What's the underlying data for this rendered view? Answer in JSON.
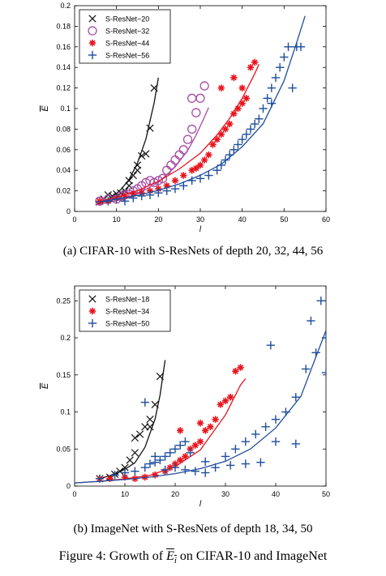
{
  "figure_caption": {
    "prefix": "Figure 4: Growth of ",
    "symbol": "E",
    "subscript": "i",
    "suffix": " on CIFAR-10 and ImageNet"
  },
  "colors": {
    "S-ResNet-20": "#111111",
    "S-ResNet-32": "#a64ca6",
    "S-ResNet-44": "#e8141e",
    "S-ResNet-56": "#1f4e9c",
    "S-ResNet-18": "#111111",
    "S-ResNet-34": "#e8141e",
    "S-ResNet-50": "#1f4e9c"
  },
  "chart_data": [
    {
      "type": "scatter",
      "caption": "(a) CIFAR-10 with S-ResNets of depth 20, 32, 44, 56",
      "xlabel": "l",
      "ylabel": "E",
      "xlim": [
        0,
        60
      ],
      "ylim": [
        0,
        0.2
      ],
      "xticks": [
        "0",
        "10",
        "20",
        "30",
        "40",
        "50",
        "60"
      ],
      "yticks": [
        "0",
        "0.02",
        "0.04",
        "0.06",
        "0.08",
        "0.1",
        "0.12",
        "0.14",
        "0.16",
        "0.18",
        "0.2"
      ],
      "grid": false,
      "legend_position": "top-left",
      "series": [
        {
          "name": "S-ResNet−20",
          "marker": "x",
          "points": [
            [
              6,
              0.01
            ],
            [
              7,
              0.012
            ],
            [
              8,
              0.016
            ],
            [
              9,
              0.015
            ],
            [
              10,
              0.017
            ],
            [
              11,
              0.018
            ],
            [
              11,
              0.014
            ],
            [
              12,
              0.02
            ],
            [
              13,
              0.025
            ],
            [
              13,
              0.03
            ],
            [
              14,
              0.035
            ],
            [
              15,
              0.04
            ],
            [
              15,
              0.045
            ],
            [
              16,
              0.054
            ],
            [
              17,
              0.056
            ],
            [
              18,
              0.081
            ],
            [
              19,
              0.12
            ]
          ],
          "curve": [
            [
              5,
              0.0063
            ],
            [
              7,
              0.0094
            ],
            [
              9,
              0.014
            ],
            [
              11,
              0.021
            ],
            [
              13,
              0.031
            ],
            [
              15,
              0.047
            ],
            [
              17,
              0.07
            ],
            [
              19,
              0.106
            ],
            [
              20,
              0.13
            ]
          ]
        },
        {
          "name": "S-ResNet−32",
          "marker": "o",
          "points": [
            [
              6,
              0.01
            ],
            [
              8,
              0.012
            ],
            [
              10,
              0.012
            ],
            [
              11,
              0.015
            ],
            [
              12,
              0.016
            ],
            [
              13,
              0.017
            ],
            [
              14,
              0.02
            ],
            [
              15,
              0.022
            ],
            [
              16,
              0.025
            ],
            [
              17,
              0.028
            ],
            [
              18,
              0.03
            ],
            [
              19,
              0.028
            ],
            [
              20,
              0.03
            ],
            [
              21,
              0.032
            ],
            [
              22,
              0.04
            ],
            [
              23,
              0.045
            ],
            [
              24,
              0.05
            ],
            [
              25,
              0.055
            ],
            [
              26,
              0.06
            ],
            [
              27,
              0.07
            ],
            [
              28,
              0.08
            ],
            [
              29,
              0.096
            ],
            [
              28,
              0.11
            ],
            [
              30,
              0.11
            ],
            [
              31,
              0.122
            ]
          ],
          "curve": [
            [
              5,
              0.0062
            ],
            [
              10,
              0.0103
            ],
            [
              15,
              0.017
            ],
            [
              20,
              0.0283
            ],
            [
              24,
              0.0433
            ],
            [
              27,
              0.0594
            ],
            [
              29,
              0.0742
            ],
            [
              31,
              0.0919
            ],
            [
              32,
              0.101
            ]
          ]
        },
        {
          "name": "S-ResNet−44",
          "marker": "*",
          "points": [
            [
              6,
              0.01
            ],
            [
              8,
              0.01
            ],
            [
              10,
              0.013
            ],
            [
              12,
              0.015
            ],
            [
              14,
              0.017
            ],
            [
              16,
              0.018
            ],
            [
              18,
              0.02
            ],
            [
              20,
              0.022
            ],
            [
              22,
              0.025
            ],
            [
              24,
              0.03
            ],
            [
              26,
              0.035
            ],
            [
              28,
              0.04
            ],
            [
              29,
              0.042
            ],
            [
              30,
              0.045
            ],
            [
              31,
              0.05
            ],
            [
              32,
              0.055
            ],
            [
              33,
              0.065
            ],
            [
              34,
              0.07
            ],
            [
              35,
              0.075
            ],
            [
              36,
              0.08
            ],
            [
              37,
              0.085
            ],
            [
              38,
              0.095
            ],
            [
              39,
              0.1
            ],
            [
              40,
              0.105
            ],
            [
              41,
              0.11
            ],
            [
              40,
              0.12
            ],
            [
              42,
              0.14
            ],
            [
              43,
              0.145
            ],
            [
              38,
              0.13
            ],
            [
              35,
              0.12
            ]
          ],
          "curve": [
            [
              5,
              0.0089
            ],
            [
              10,
              0.0136
            ],
            [
              15,
              0.0202
            ],
            [
              20,
              0.0293
            ],
            [
              25,
              0.0413
            ],
            [
              30,
              0.0565
            ],
            [
              34,
              0.0745
            ],
            [
              37,
              0.0905
            ],
            [
              40,
              0.11
            ],
            [
              43,
              0.134
            ],
            [
              44,
              0.143
            ]
          ]
        },
        {
          "name": "S-ResNet−56",
          "marker": "+",
          "points": [
            [
              8,
              0.01
            ],
            [
              10,
              0.012
            ],
            [
              12,
              0.01
            ],
            [
              14,
              0.013
            ],
            [
              16,
              0.015
            ],
            [
              18,
              0.016
            ],
            [
              20,
              0.018
            ],
            [
              22,
              0.02
            ],
            [
              24,
              0.022
            ],
            [
              26,
              0.025
            ],
            [
              28,
              0.03
            ],
            [
              30,
              0.032
            ],
            [
              32,
              0.035
            ],
            [
              34,
              0.04
            ],
            [
              35,
              0.045
            ],
            [
              36,
              0.05
            ],
            [
              37,
              0.055
            ],
            [
              38,
              0.06
            ],
            [
              39,
              0.065
            ],
            [
              40,
              0.07
            ],
            [
              41,
              0.075
            ],
            [
              42,
              0.08
            ],
            [
              43,
              0.085
            ],
            [
              44,
              0.09
            ],
            [
              45,
              0.1
            ],
            [
              46,
              0.11
            ],
            [
              47,
              0.12
            ],
            [
              48,
              0.13
            ],
            [
              49,
              0.14
            ],
            [
              50,
              0.15
            ],
            [
              51,
              0.16
            ],
            [
              53,
              0.16
            ],
            [
              54,
              0.16
            ],
            [
              52,
              0.12
            ],
            [
              47,
              0.105
            ]
          ],
          "curve": [
            [
              5,
              0.009
            ],
            [
              10,
              0.0119
            ],
            [
              15,
              0.0156
            ],
            [
              20,
              0.0205
            ],
            [
              25,
              0.0268
            ],
            [
              30,
              0.0351
            ],
            [
              35,
              0.0459
            ],
            [
              40,
              0.0629
            ],
            [
              45,
              0.0853
            ],
            [
              50,
              0.127
            ],
            [
              53,
              0.164
            ],
            [
              55,
              0.19
            ]
          ]
        }
      ]
    },
    {
      "type": "scatter",
      "caption": "(b) ImageNet with S-ResNets of depth 18, 34, 50",
      "xlabel": "l",
      "ylabel": "E",
      "xlim": [
        0,
        50
      ],
      "ylim": [
        0,
        0.27
      ],
      "xticks": [
        "0",
        "10",
        "20",
        "30",
        "40",
        "50"
      ],
      "yticks": [
        "0",
        "0.05",
        "0.1",
        "0.15",
        "0.2",
        "0.25"
      ],
      "grid": false,
      "legend_position": "top-left",
      "series": [
        {
          "name": "S-ResNet−18",
          "marker": "x",
          "points": [
            [
              5,
              0.01
            ],
            [
              7,
              0.012
            ],
            [
              8,
              0.016
            ],
            [
              9,
              0.02
            ],
            [
              10,
              0.025
            ],
            [
              11,
              0.035
            ],
            [
              12,
              0.045
            ],
            [
              12,
              0.065
            ],
            [
              13,
              0.07
            ],
            [
              14,
              0.08
            ],
            [
              15,
              0.08
            ],
            [
              15,
              0.09
            ],
            [
              16,
              0.11
            ],
            [
              17,
              0.148
            ]
          ],
          "curve": [
            [
              5,
              0.01
            ],
            [
              8,
              0.0161
            ],
            [
              10,
              0.0226
            ],
            [
              12,
              0.0315
            ],
            [
              14,
              0.0524
            ],
            [
              16,
              0.0903
            ],
            [
              17,
              0.123
            ],
            [
              18,
              0.17
            ]
          ]
        },
        {
          "name": "S-ResNet−34",
          "marker": "*",
          "points": [
            [
              5,
              0.01
            ],
            [
              7,
              0.01
            ],
            [
              10,
              0.012
            ],
            [
              12,
              0.01
            ],
            [
              14,
              0.012
            ],
            [
              16,
              0.015
            ],
            [
              18,
              0.02
            ],
            [
              19,
              0.025
            ],
            [
              20,
              0.03
            ],
            [
              21,
              0.035
            ],
            [
              22,
              0.04
            ],
            [
              23,
              0.05
            ],
            [
              24,
              0.055
            ],
            [
              25,
              0.06
            ],
            [
              26,
              0.075
            ],
            [
              27,
              0.08
            ],
            [
              28,
              0.09
            ],
            [
              29,
              0.11
            ],
            [
              30,
              0.115
            ],
            [
              31,
              0.12
            ],
            [
              32,
              0.155
            ],
            [
              33,
              0.16
            ],
            [
              21,
              0.075
            ],
            [
              25,
              0.085
            ]
          ],
          "curve": [
            [
              0,
              0.0043
            ],
            [
              5,
              0.0064
            ],
            [
              10,
              0.0096
            ],
            [
              15,
              0.0144
            ],
            [
              20,
              0.0262
            ],
            [
              25,
              0.0488
            ],
            [
              30,
              0.096
            ],
            [
              33,
              0.1364
            ],
            [
              34,
              0.145
            ]
          ]
        },
        {
          "name": "S-ResNet−50",
          "marker": "+",
          "points": [
            [
              5,
              0.01
            ],
            [
              8,
              0.015
            ],
            [
              10,
              0.018
            ],
            [
              12,
              0.02
            ],
            [
              14,
              0.025
            ],
            [
              15,
              0.03
            ],
            [
              16,
              0.032
            ],
            [
              17,
              0.035
            ],
            [
              18,
              0.04
            ],
            [
              19,
              0.045
            ],
            [
              20,
              0.05
            ],
            [
              21,
              0.055
            ],
            [
              22,
              0.06
            ],
            [
              14,
              0.113
            ],
            [
              16,
              0.04
            ],
            [
              18,
              0.022
            ],
            [
              20,
              0.025
            ],
            [
              22,
              0.022
            ],
            [
              24,
              0.02
            ],
            [
              26,
              0.018
            ],
            [
              28,
              0.025
            ],
            [
              30,
              0.04
            ],
            [
              32,
              0.05
            ],
            [
              34,
              0.06
            ],
            [
              36,
              0.07
            ],
            [
              38,
              0.08
            ],
            [
              40,
              0.09
            ],
            [
              42,
              0.1
            ],
            [
              44,
              0.12
            ],
            [
              46,
              0.158
            ],
            [
              48,
              0.18
            ],
            [
              50,
              0.2
            ],
            [
              39,
              0.19
            ],
            [
              47,
              0.223
            ],
            [
              49,
              0.25
            ],
            [
              50,
              0.153
            ],
            [
              44,
              0.057
            ],
            [
              40,
              0.06
            ],
            [
              37,
              0.032
            ],
            [
              34,
              0.03
            ],
            [
              31,
              0.028
            ],
            [
              26,
              0.033
            ],
            [
              23,
              0.045
            ]
          ],
          "curve": [
            [
              0,
              0.0043
            ],
            [
              5,
              0.0064
            ],
            [
              10,
              0.0088
            ],
            [
              15,
              0.0121
            ],
            [
              20,
              0.0168
            ],
            [
              25,
              0.0235
            ],
            [
              30,
              0.0334
            ],
            [
              35,
              0.0502
            ],
            [
              40,
              0.0785
            ],
            [
              45,
              0.121
            ],
            [
              50,
              0.21
            ]
          ]
        }
      ]
    }
  ]
}
